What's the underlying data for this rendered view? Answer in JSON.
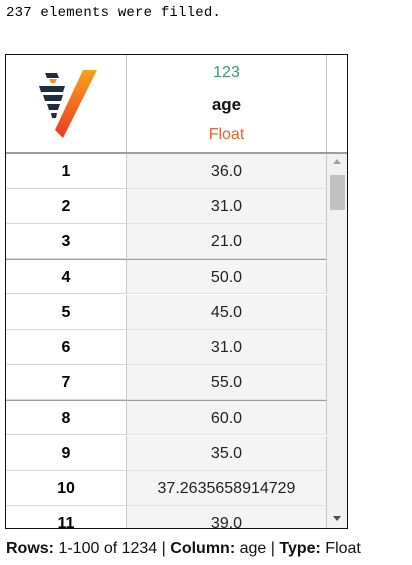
{
  "console": {
    "message": "237 elements were filled."
  },
  "grid": {
    "column": {
      "type_code": "123",
      "name": "age",
      "type_name": "Float"
    },
    "rows": [
      {
        "index": "1",
        "value": "36.0"
      },
      {
        "index": "2",
        "value": "31.0"
      },
      {
        "index": "3",
        "value": "21.0"
      },
      {
        "index": "4",
        "value": "50.0"
      },
      {
        "index": "5",
        "value": "45.0"
      },
      {
        "index": "6",
        "value": "31.0"
      },
      {
        "index": "7",
        "value": "55.0"
      },
      {
        "index": "8",
        "value": "60.0"
      },
      {
        "index": "9",
        "value": "35.0"
      },
      {
        "index": "10",
        "value": "37.2635658914729"
      },
      {
        "index": "11",
        "value": "39.0"
      }
    ]
  },
  "status": {
    "rows_label": "Rows:",
    "rows_value": "1-100 of 1234",
    "column_label": "Column:",
    "column_value": "age",
    "type_label": "Type:",
    "type_value": "Float",
    "separator": "|"
  },
  "colors": {
    "type_code": "#3a9a72",
    "type_name": "#e8622c",
    "logo_dark": "#1f2d3d",
    "logo_orange": "#f7941d",
    "logo_red": "#ee4023"
  },
  "icons": {
    "logo": "vaex-logo-icon",
    "scroll_up": "arrow-up-icon",
    "scroll_down": "arrow-down-icon"
  }
}
